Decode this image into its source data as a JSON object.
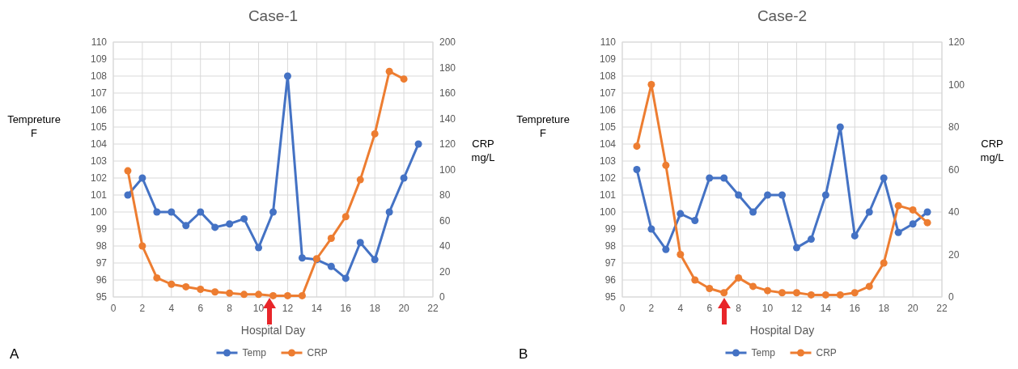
{
  "chart_data": [
    {
      "type": "line",
      "title": "Case-1",
      "xlabel": "Hospital Day",
      "ylabel": "Tempreture F",
      "y2label": "CRP mg/L",
      "annotations": [
        "A"
      ],
      "xlim": [
        0,
        22
      ],
      "xticks": [
        0,
        2,
        4,
        6,
        8,
        10,
        12,
        14,
        16,
        18,
        20,
        22
      ],
      "ylim": [
        95,
        110
      ],
      "yticks": [
        95,
        96,
        97,
        98,
        99,
        100,
        101,
        102,
        103,
        104,
        105,
        106,
        107,
        108,
        109,
        110
      ],
      "y2lim": [
        0,
        200
      ],
      "y2ticks": [
        0,
        20,
        40,
        60,
        80,
        100,
        120,
        140,
        160,
        180,
        200
      ],
      "grid": true,
      "legend": "bottom",
      "marker": "circle",
      "line_style": "solid",
      "series": [
        {
          "name": "Temp",
          "color": "#4472c4",
          "x": [
            1,
            2,
            3,
            4,
            5,
            6,
            7,
            8,
            9,
            10,
            11,
            12,
            13,
            14,
            15,
            16,
            17,
            18,
            19,
            20,
            21
          ],
          "values": [
            101,
            102,
            100,
            100,
            99.2,
            100,
            99.1,
            99.3,
            99.6,
            97.9,
            100,
            108,
            97.3,
            97.2,
            96.8,
            96.1,
            98.2,
            97.2,
            100,
            102,
            104
          ]
        },
        {
          "name": "CRP",
          "color": "#ed7d31",
          "axis": "y2",
          "x": [
            1,
            2,
            3,
            4,
            5,
            6,
            7,
            8,
            9,
            10,
            11,
            12,
            13,
            14,
            15,
            16,
            17,
            18,
            19,
            20
          ],
          "values": [
            99,
            40,
            15,
            10,
            8,
            6,
            4,
            3,
            2,
            2,
            1,
            1,
            1,
            30,
            46,
            63,
            92,
            128,
            177,
            171
          ]
        }
      ]
    },
    {
      "type": "line",
      "title": "Case-2",
      "xlabel": "Hospital Day",
      "ylabel": "Tempreture F",
      "y2label": "CRP mg/L",
      "annotations": [
        "B"
      ],
      "xlim": [
        0,
        22
      ],
      "xticks": [
        0,
        2,
        4,
        6,
        8,
        10,
        12,
        14,
        16,
        18,
        20,
        22
      ],
      "ylim": [
        95,
        110
      ],
      "yticks": [
        95,
        96,
        97,
        98,
        99,
        100,
        101,
        102,
        103,
        104,
        105,
        106,
        107,
        108,
        109,
        110
      ],
      "y2lim": [
        0,
        120
      ],
      "y2ticks": [
        0,
        20,
        40,
        60,
        80,
        100,
        120
      ],
      "grid": true,
      "legend": "bottom",
      "marker": "circle",
      "line_style": "solid",
      "series": [
        {
          "name": "Temp",
          "color": "#4472c4",
          "x": [
            1,
            2,
            3,
            4,
            5,
            6,
            7,
            8,
            9,
            10,
            11,
            12,
            13,
            14,
            15,
            16,
            17,
            18,
            19,
            20,
            21
          ],
          "values": [
            102.5,
            99,
            97.8,
            99.9,
            99.5,
            102,
            102,
            101,
            100,
            101,
            101,
            97.9,
            98.4,
            101,
            105,
            98.6,
            100,
            102,
            98.8,
            99.3,
            100
          ]
        },
        {
          "name": "CRP",
          "color": "#ed7d31",
          "axis": "y2",
          "x": [
            1,
            2,
            3,
            4,
            5,
            6,
            7,
            8,
            9,
            10,
            11,
            12,
            13,
            14,
            15,
            16,
            17,
            18,
            19,
            20,
            21
          ],
          "values": [
            71,
            100,
            62,
            20,
            8,
            4,
            2,
            9,
            5,
            3,
            2,
            2,
            1,
            1,
            1,
            2,
            5,
            16,
            43,
            41,
            35
          ]
        }
      ]
    }
  ]
}
